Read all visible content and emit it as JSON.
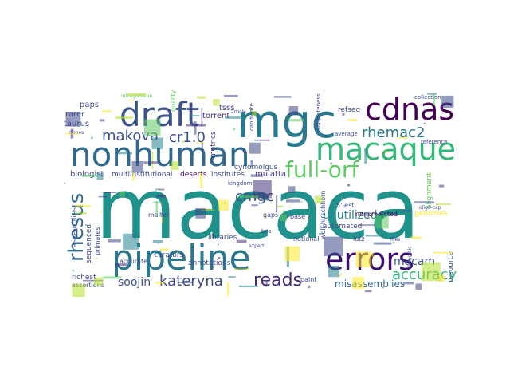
{
  "words": [
    {
      "text": "macaca",
      "color": "#21918c"
    },
    {
      "text": "mgc",
      "color": "#2a788e"
    },
    {
      "text": "draft",
      "color": "#3b528b"
    },
    {
      "text": "cdnas",
      "color": "#440154"
    },
    {
      "text": "nonhuman",
      "color": "#31688e"
    },
    {
      "text": "macaque",
      "color": "#35b779"
    },
    {
      "text": "pipeline",
      "color": "#2a788e"
    },
    {
      "text": "errors",
      "color": "#3b0f70"
    },
    {
      "text": "full-orf",
      "color": "#5ec962"
    },
    {
      "text": "rhemac2",
      "color": "#2a788e"
    },
    {
      "text": "makova",
      "color": "#3b528b"
    },
    {
      "text": "cr1.0",
      "color": "#3b528b"
    },
    {
      "text": "rhesus",
      "color": "#31688e"
    },
    {
      "text": "reads",
      "color": "#482878"
    },
    {
      "text": "kateryna",
      "color": "#3e4989"
    },
    {
      "text": "accuracy",
      "color": "#35b779"
    },
    {
      "text": "unutilized",
      "color": "#26828e"
    },
    {
      "text": "soojin",
      "color": "#3b528b"
    },
    {
      "text": "macam",
      "color": "#3b528b"
    },
    {
      "text": "cmgc",
      "color": "#3b528b"
    },
    {
      "text": "misassemblies",
      "color": "#31688e"
    },
    {
      "text": "tsss",
      "color": "#3e4989"
    },
    {
      "text": "torrent",
      "color": "#46327e"
    },
    {
      "text": "metrics",
      "color": "#46327e"
    },
    {
      "text": "biologist",
      "color": "#3e4989"
    },
    {
      "text": "multiinstitutional",
      "color": "#3e4989"
    },
    {
      "text": "deserts",
      "color": "#440154"
    },
    {
      "text": "institutes",
      "color": "#3e4989"
    },
    {
      "text": "mulatta",
      "color": "#46327e"
    },
    {
      "text": "cynomolgus",
      "color": "#3b528b"
    },
    {
      "text": "paps",
      "color": "#3e4989"
    },
    {
      "text": "rarer",
      "color": "#3e4989"
    },
    {
      "text": "taurus",
      "color": "#3e4989"
    },
    {
      "text": "assemblies",
      "color": "#3b528b"
    },
    {
      "text": "sequenced",
      "color": "#3b528b"
    },
    {
      "text": "primates",
      "color": "#3e4989"
    },
    {
      "text": "curators",
      "color": "#3e4989"
    },
    {
      "text": "annotations",
      "color": "#3e4989"
    },
    {
      "text": "libraries",
      "color": "#3e4989"
    },
    {
      "text": "automated",
      "color": "#3e4989"
    },
    {
      "text": "nonpredicted",
      "color": "#440154"
    },
    {
      "text": "genomes",
      "color": "#fde725"
    },
    {
      "text": "alignment",
      "color": "#5ec962"
    },
    {
      "text": "resource",
      "color": "#3b528b"
    },
    {
      "text": "refseq",
      "color": "#3e4989"
    },
    {
      "text": "richest",
      "color": "#3e4989"
    },
    {
      "text": "assertions",
      "color": "#3e4989"
    },
    {
      "text": "accurate",
      "color": "#3e4989"
    },
    {
      "text": "paint",
      "color": "#3e4989"
    },
    {
      "text": "national",
      "color": "#3e4989"
    },
    {
      "text": "gaps",
      "color": "#3e4989"
    },
    {
      "text": "base",
      "color": "#3e4989"
    },
    {
      "text": "lutz",
      "color": "#3e4989"
    },
    {
      "text": "malter",
      "color": "#3e4989"
    },
    {
      "text": "kingdom",
      "color": "#3e4989"
    },
    {
      "text": "bos",
      "color": "#3e4989"
    },
    {
      "text": "wolf-hirschhorn",
      "color": "#3e4989"
    },
    {
      "text": "5'-est",
      "color": "#3e4989"
    },
    {
      "text": "quality",
      "color": "#5ec962"
    },
    {
      "text": "collection",
      "color": "#3e4989"
    },
    {
      "text": "candidate",
      "color": "#3e4989"
    },
    {
      "text": "completeness",
      "color": "#3e4989"
    },
    {
      "text": "reference",
      "color": "#3e4989"
    },
    {
      "text": "average",
      "color": "#3e4989"
    },
    {
      "text": "article",
      "color": "#3e4989"
    },
    {
      "text": "clones",
      "color": "#3e4989"
    },
    {
      "text": "files",
      "color": "#3e4989"
    },
    {
      "text": "expert",
      "color": "#3e4989"
    },
    {
      "text": "domestic",
      "color": "#3e4989"
    },
    {
      "text": "oligo-cap",
      "color": "#3e4989"
    },
    {
      "text": "intragression",
      "color": "#5ec962"
    }
  ]
}
